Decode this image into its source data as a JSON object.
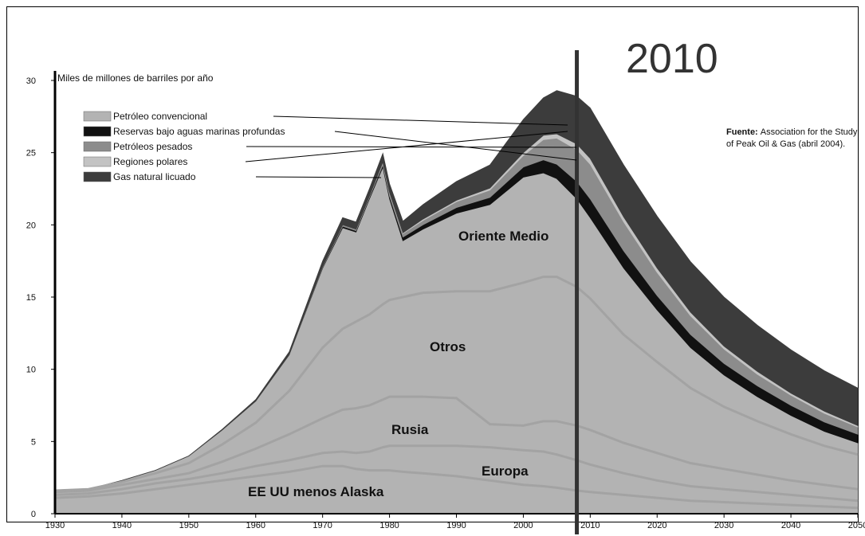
{
  "chart_data": {
    "type": "area",
    "stacked": true,
    "annotation_year_label": "2010",
    "annotation_year": 2008,
    "ylabel": "Miles de millones de barriles por año",
    "source": {
      "bold": "Fuente:",
      "line1": "Association for the Study",
      "line2": "of Peak Oil & Gas (abril 2004)."
    },
    "x_ticks": [
      1930,
      1940,
      1950,
      1960,
      1970,
      1980,
      1990,
      2000,
      2010,
      2020,
      2030,
      2040,
      2050
    ],
    "y_ticks": [
      0,
      5,
      10,
      15,
      20,
      25,
      30
    ],
    "xlim": [
      1930,
      2050
    ],
    "ylim": [
      0,
      30
    ],
    "grid": false,
    "colors": {
      "conventional": "#b3b3b3",
      "region_line": "#a3a3a3",
      "deep_water": "#111111",
      "heavy_oil": "#8c8c8c",
      "polar": "#c3c3c3",
      "lng": "#3c3c3c"
    },
    "legend": [
      {
        "label": "Petróleo convencional",
        "color": "#b3b3b3"
      },
      {
        "label": "Reservas bajo aguas marinas profundas",
        "color": "#111111"
      },
      {
        "label": "Petróleos pesados",
        "color": "#8c8c8c"
      },
      {
        "label": "Regiones polares",
        "color": "#c3c3c3"
      },
      {
        "label": "Gas natural licuado",
        "color": "#3c3c3c"
      }
    ],
    "region_labels": {
      "middle_east": "Oriente Medio",
      "others": "Otros",
      "russia": "Rusia",
      "europe": "Europa",
      "usa": "EE UU menos Alaska"
    },
    "x": [
      1930,
      1935,
      1940,
      1945,
      1950,
      1955,
      1960,
      1965,
      1970,
      1973,
      1975,
      1977,
      1979,
      1980,
      1982,
      1985,
      1990,
      1995,
      2000,
      2003,
      2005,
      2008,
      2010,
      2015,
      2020,
      2025,
      2030,
      2035,
      2040,
      2045,
      2050
    ],
    "series": [
      {
        "name": "EE UU menos Alaska",
        "values": [
          1.1,
          1.2,
          1.4,
          1.7,
          2.0,
          2.3,
          2.6,
          2.9,
          3.3,
          3.3,
          3.1,
          3.0,
          3.0,
          3.0,
          2.9,
          2.8,
          2.6,
          2.3,
          2.0,
          1.9,
          1.8,
          1.6,
          1.5,
          1.3,
          1.1,
          0.9,
          0.8,
          0.7,
          0.6,
          0.5,
          0.4
        ]
      },
      {
        "name": "Europa",
        "values": [
          0.2,
          0.2,
          0.3,
          0.4,
          0.4,
          0.5,
          0.7,
          0.8,
          0.9,
          1.0,
          1.1,
          1.3,
          1.6,
          1.7,
          1.8,
          1.9,
          2.1,
          2.3,
          2.4,
          2.4,
          2.3,
          2.1,
          1.9,
          1.5,
          1.2,
          1.0,
          0.9,
          0.8,
          0.7,
          0.6,
          0.5
        ]
      },
      {
        "name": "Rusia",
        "values": [
          0.2,
          0.2,
          0.3,
          0.3,
          0.4,
          0.8,
          1.2,
          1.8,
          2.4,
          2.9,
          3.1,
          3.2,
          3.3,
          3.4,
          3.4,
          3.4,
          3.3,
          1.6,
          1.7,
          2.1,
          2.3,
          2.4,
          2.4,
          2.1,
          1.9,
          1.6,
          1.4,
          1.2,
          1.0,
          0.9,
          0.8
        ]
      },
      {
        "name": "Otros",
        "values": [
          0.1,
          0.1,
          0.2,
          0.4,
          0.7,
          1.2,
          1.8,
          3.0,
          4.9,
          5.6,
          6.0,
          6.3,
          6.6,
          6.7,
          6.9,
          7.2,
          7.4,
          9.2,
          9.9,
          10.0,
          10.0,
          9.6,
          9.1,
          7.5,
          6.3,
          5.2,
          4.3,
          3.7,
          3.2,
          2.7,
          2.4
        ]
      },
      {
        "name": "Oriente Medio",
        "values": [
          0.0,
          0.0,
          0.1,
          0.2,
          0.5,
          1.0,
          1.5,
          2.5,
          5.5,
          7.0,
          6.2,
          8.0,
          9.5,
          7.0,
          3.9,
          4.4,
          5.4,
          6.0,
          7.3,
          7.2,
          6.8,
          6.1,
          5.6,
          4.6,
          3.6,
          2.8,
          2.2,
          1.7,
          1.3,
          1.0,
          0.8
        ]
      },
      {
        "name": "Reservas bajo aguas marinas profundas",
        "values": [
          0.0,
          0.0,
          0.0,
          0.0,
          0.0,
          0.0,
          0.0,
          0.0,
          0.05,
          0.1,
          0.1,
          0.1,
          0.15,
          0.2,
          0.25,
          0.3,
          0.4,
          0.5,
          0.7,
          0.9,
          1.0,
          1.2,
          1.3,
          1.2,
          1.0,
          0.9,
          0.8,
          0.75,
          0.7,
          0.65,
          0.6
        ]
      },
      {
        "name": "Petróleos pesados",
        "values": [
          0.0,
          0.0,
          0.0,
          0.0,
          0.0,
          0.0,
          0.0,
          0.0,
          0.05,
          0.1,
          0.1,
          0.1,
          0.15,
          0.2,
          0.25,
          0.3,
          0.4,
          0.5,
          0.8,
          1.4,
          1.8,
          2.2,
          2.4,
          2.0,
          1.6,
          1.3,
          1.0,
          0.8,
          0.7,
          0.6,
          0.5
        ]
      },
      {
        "name": "Regiones polares",
        "values": [
          0.0,
          0.0,
          0.0,
          0.0,
          0.0,
          0.0,
          0.0,
          0.0,
          0.0,
          0.0,
          0.0,
          0.0,
          0.05,
          0.05,
          0.05,
          0.1,
          0.1,
          0.15,
          0.2,
          0.3,
          0.3,
          0.4,
          0.4,
          0.35,
          0.3,
          0.25,
          0.2,
          0.2,
          0.15,
          0.15,
          0.1
        ]
      },
      {
        "name": "Gas natural licuado",
        "values": [
          0.0,
          0.0,
          0.0,
          0.0,
          0.0,
          0.05,
          0.1,
          0.2,
          0.4,
          0.5,
          0.5,
          0.5,
          0.6,
          0.6,
          0.8,
          1.0,
          1.3,
          1.6,
          2.3,
          2.6,
          3.0,
          3.3,
          3.5,
          3.6,
          3.6,
          3.5,
          3.4,
          3.2,
          3.0,
          2.8,
          2.6
        ]
      }
    ]
  }
}
